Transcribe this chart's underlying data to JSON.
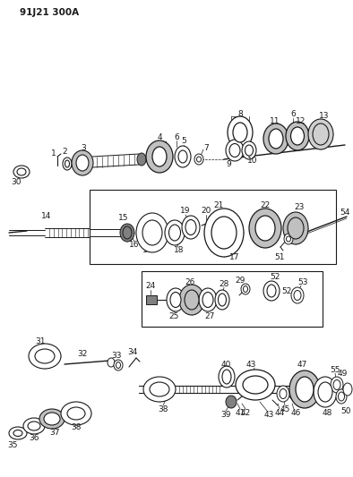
{
  "title": "91J21 300A",
  "bg": "#ffffff",
  "lc": "#1a1a1a",
  "tc": "#1a1a1a",
  "figsize": [
    3.94,
    5.33
  ],
  "dpi": 100
}
